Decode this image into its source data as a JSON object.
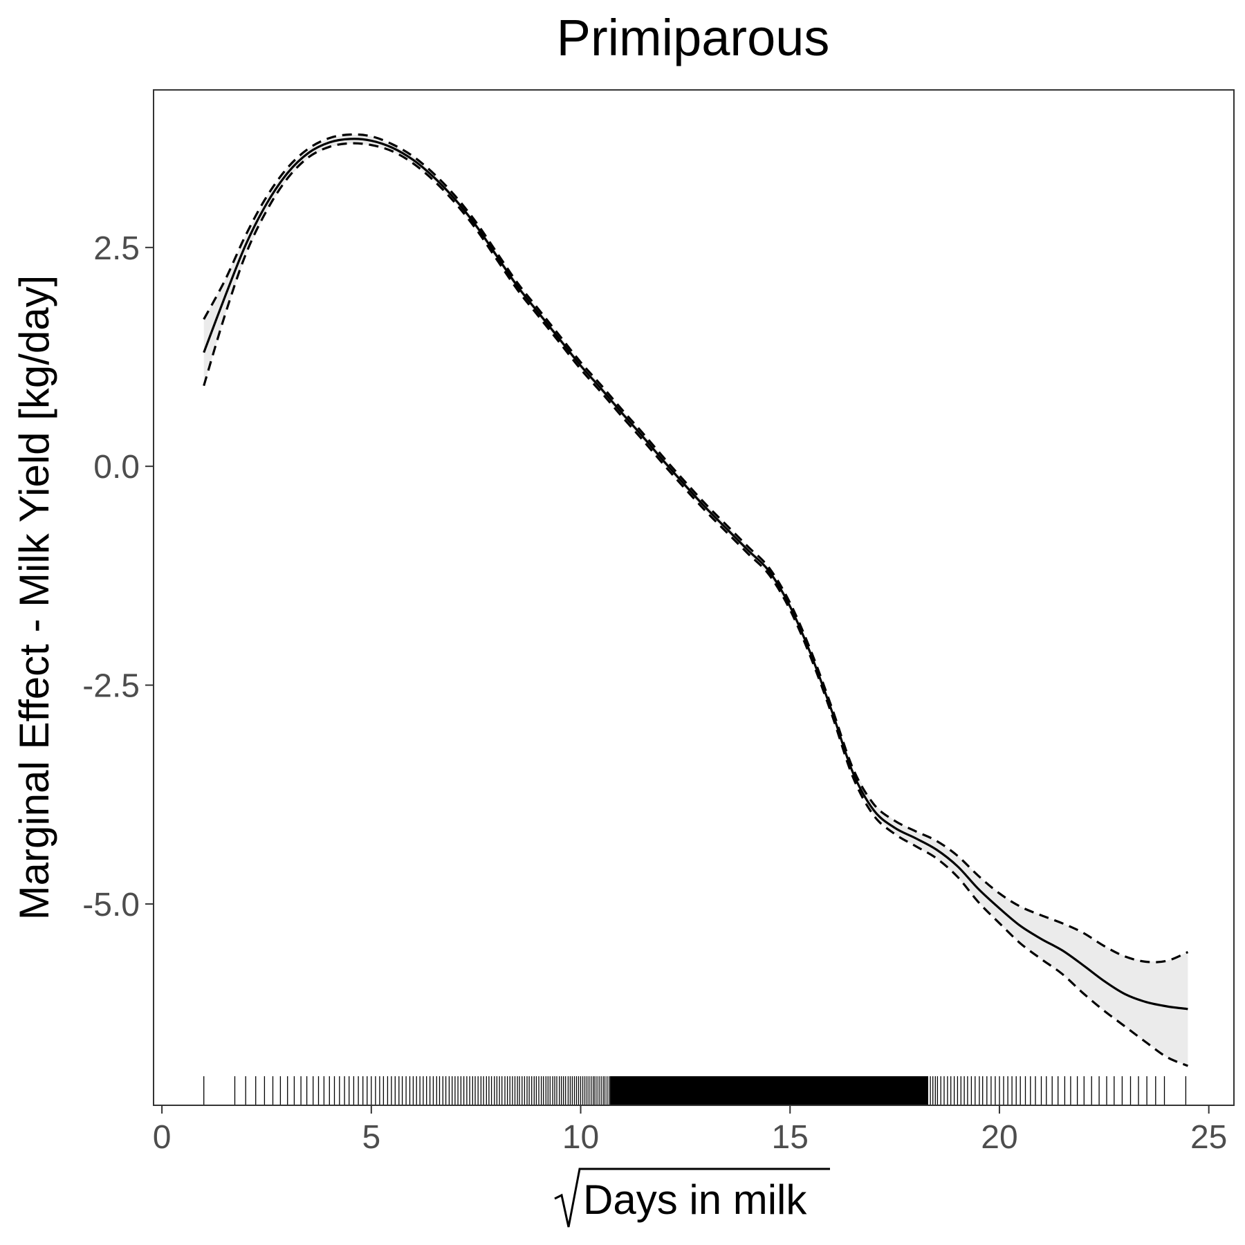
{
  "chart_data": {
    "type": "line",
    "title": "Primiparous",
    "xlabel": "Days in milk",
    "xlabel_transform": "sqrt",
    "ylabel": "Marginal Effect - Milk Yield [kg/day]",
    "xlim": [
      -0.2,
      25.6
    ],
    "ylim": [
      -7.3,
      4.3
    ],
    "x_ticks": [
      0,
      5,
      10,
      15,
      20,
      25
    ],
    "x_tick_labels": [
      "0",
      "5",
      "10",
      "15",
      "20",
      "25"
    ],
    "y_ticks": [
      2.5,
      0.0,
      -2.5,
      -5.0
    ],
    "y_tick_labels": [
      "2.5",
      "0.0",
      "-2.5",
      "-5.0"
    ],
    "grid": false,
    "series": [
      {
        "role": "estimate",
        "style": "solid",
        "x": [
          1.0,
          1.5,
          2.0,
          2.5,
          3.0,
          3.5,
          4.0,
          4.5,
          5.0,
          5.5,
          6.0,
          6.5,
          7.0,
          7.5,
          8.0,
          8.5,
          9.0,
          9.5,
          10.0,
          10.5,
          11.0,
          11.5,
          12.0,
          12.5,
          13.0,
          13.5,
          14.0,
          14.5,
          15.0,
          15.5,
          16.0,
          16.5,
          17.0,
          17.5,
          18.0,
          18.5,
          19.0,
          19.5,
          20.0,
          20.5,
          21.0,
          21.5,
          22.0,
          22.5,
          23.0,
          23.5,
          24.0,
          24.5
        ],
        "values": [
          1.3,
          1.93,
          2.53,
          3.0,
          3.35,
          3.58,
          3.7,
          3.74,
          3.72,
          3.64,
          3.5,
          3.3,
          3.05,
          2.75,
          2.4,
          2.05,
          1.75,
          1.45,
          1.15,
          0.88,
          0.6,
          0.33,
          0.05,
          -0.22,
          -0.48,
          -0.72,
          -0.96,
          -1.2,
          -1.6,
          -2.15,
          -2.8,
          -3.5,
          -3.93,
          -4.13,
          -4.25,
          -4.38,
          -4.57,
          -4.83,
          -5.05,
          -5.25,
          -5.4,
          -5.53,
          -5.7,
          -5.88,
          -6.03,
          -6.12,
          -6.17,
          -6.2
        ]
      },
      {
        "role": "upper",
        "style": "dashed",
        "x": [
          1.0,
          1.5,
          2.0,
          2.5,
          3.0,
          3.5,
          4.0,
          4.5,
          5.0,
          5.5,
          6.0,
          6.5,
          7.0,
          7.5,
          8.0,
          8.5,
          9.0,
          9.5,
          10.0,
          10.5,
          11.0,
          11.5,
          12.0,
          12.5,
          13.0,
          13.5,
          14.0,
          14.5,
          15.0,
          15.5,
          16.0,
          16.5,
          17.0,
          17.5,
          18.0,
          18.5,
          19.0,
          19.5,
          20.0,
          20.5,
          21.0,
          21.5,
          22.0,
          22.5,
          23.0,
          23.5,
          24.0,
          24.5
        ],
        "values": [
          1.68,
          2.12,
          2.64,
          3.08,
          3.41,
          3.63,
          3.75,
          3.79,
          3.77,
          3.68,
          3.54,
          3.34,
          3.09,
          2.79,
          2.44,
          2.09,
          1.79,
          1.49,
          1.19,
          0.92,
          0.64,
          0.37,
          0.09,
          -0.18,
          -0.44,
          -0.68,
          -0.92,
          -1.16,
          -1.56,
          -2.11,
          -2.76,
          -3.45,
          -3.86,
          -4.05,
          -4.17,
          -4.28,
          -4.45,
          -4.68,
          -4.88,
          -5.03,
          -5.13,
          -5.22,
          -5.33,
          -5.48,
          -5.6,
          -5.66,
          -5.65,
          -5.55
        ]
      },
      {
        "role": "lower",
        "style": "dashed",
        "x": [
          1.0,
          1.5,
          2.0,
          2.5,
          3.0,
          3.5,
          4.0,
          4.5,
          5.0,
          5.5,
          6.0,
          6.5,
          7.0,
          7.5,
          8.0,
          8.5,
          9.0,
          9.5,
          10.0,
          10.5,
          11.0,
          11.5,
          12.0,
          12.5,
          13.0,
          13.5,
          14.0,
          14.5,
          15.0,
          15.5,
          16.0,
          16.5,
          17.0,
          17.5,
          18.0,
          18.5,
          19.0,
          19.5,
          20.0,
          20.5,
          21.0,
          21.5,
          22.0,
          22.5,
          23.0,
          23.5,
          24.0,
          24.5
        ],
        "values": [
          0.92,
          1.72,
          2.42,
          2.92,
          3.29,
          3.53,
          3.65,
          3.69,
          3.67,
          3.6,
          3.46,
          3.26,
          3.01,
          2.71,
          2.36,
          2.01,
          1.71,
          1.41,
          1.11,
          0.84,
          0.56,
          0.29,
          0.01,
          -0.26,
          -0.52,
          -0.76,
          -1.0,
          -1.24,
          -1.64,
          -2.19,
          -2.84,
          -3.55,
          -3.99,
          -4.2,
          -4.34,
          -4.48,
          -4.69,
          -4.98,
          -5.22,
          -5.45,
          -5.63,
          -5.8,
          -6.02,
          -6.22,
          -6.4,
          -6.58,
          -6.75,
          -6.85
        ]
      }
    ],
    "band": {
      "between": [
        "lower",
        "upper"
      ],
      "color": "#ebebeb"
    },
    "line_color": "#000000",
    "rug": {
      "axis": "x",
      "dense_from": 10.7,
      "dense_to": 18.3,
      "x": [
        1.0,
        1.74,
        2.0,
        2.24,
        2.45,
        2.65,
        2.83,
        3.0,
        3.16,
        3.32,
        3.46,
        3.61,
        3.74,
        3.87,
        4.0,
        4.12,
        4.24,
        4.36,
        4.47,
        4.58,
        4.69,
        4.8,
        4.9,
        5.0,
        5.1,
        5.2,
        5.29,
        5.39,
        5.48,
        5.57,
        5.66,
        5.74,
        5.83,
        5.92,
        6.0,
        6.08,
        6.16,
        6.24,
        6.32,
        6.4,
        6.48,
        6.56,
        6.63,
        6.71,
        6.78,
        6.86,
        6.93,
        7.0,
        7.07,
        7.14,
        7.21,
        7.28,
        7.35,
        7.42,
        7.48,
        7.55,
        7.62,
        7.68,
        7.75,
        7.81,
        7.87,
        7.94,
        8.0,
        8.06,
        8.12,
        8.19,
        8.25,
        8.31,
        8.37,
        8.43,
        8.49,
        8.54,
        8.6,
        8.66,
        8.72,
        8.77,
        8.83,
        8.89,
        8.94,
        9.0,
        9.06,
        9.11,
        9.17,
        9.22,
        9.27,
        9.33,
        9.38,
        9.43,
        9.49,
        9.54,
        9.59,
        9.64,
        9.7,
        9.75,
        9.8,
        9.85,
        9.9,
        9.95,
        10.0,
        10.05,
        10.1,
        10.15,
        10.2,
        10.25,
        10.3,
        10.34,
        10.39,
        10.44,
        10.49,
        10.54,
        10.58,
        10.63,
        10.68,
        18.35,
        18.41,
        18.47,
        18.52,
        18.6,
        18.68,
        18.76,
        18.84,
        18.92,
        19.0,
        19.08,
        19.16,
        19.24,
        19.33,
        19.42,
        19.52,
        19.6,
        19.7,
        19.8,
        19.9,
        20.0,
        20.1,
        20.2,
        20.3,
        20.4,
        20.5,
        20.62,
        20.74,
        20.86,
        21.0,
        21.12,
        21.26,
        21.4,
        21.56,
        21.7,
        21.86,
        22.02,
        22.2,
        22.38,
        22.56,
        22.74,
        22.93,
        23.13,
        23.32,
        23.52,
        23.73,
        23.94,
        24.45
      ]
    }
  }
}
